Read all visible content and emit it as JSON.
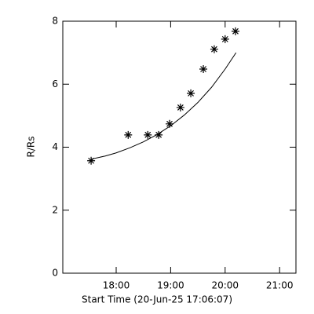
{
  "chart_data": {
    "type": "scatter",
    "xlabel": "Start Time (20-Jun-25 17:06:07)",
    "ylabel": "R/Rs",
    "xlim": [
      17.02,
      21.3
    ],
    "ylim": [
      0,
      8
    ],
    "xticks": [
      {
        "value": 18,
        "label": "18:00"
      },
      {
        "value": 19,
        "label": "19:00"
      },
      {
        "value": 20,
        "label": "20:00"
      },
      {
        "value": 21,
        "label": "21:00"
      }
    ],
    "yticks": [
      0,
      2,
      4,
      6,
      8
    ],
    "series": [
      {
        "kind": "points",
        "color": "#000000",
        "x": [
          17.54,
          18.22,
          18.58,
          18.78,
          18.98,
          19.18,
          19.37,
          19.6,
          19.8,
          20.0,
          20.19
        ],
        "values": [
          3.57,
          4.39,
          4.39,
          4.39,
          4.74,
          5.26,
          5.71,
          6.48,
          7.11,
          7.43,
          7.68
        ]
      },
      {
        "kind": "fit",
        "color": "#000000",
        "x": [
          17.54,
          17.8,
          18.0,
          18.25,
          18.5,
          18.75,
          19.0,
          19.25,
          19.5,
          19.75,
          20.0,
          20.2
        ],
        "values": [
          3.62,
          3.72,
          3.82,
          3.98,
          4.17,
          4.4,
          4.68,
          5.02,
          5.42,
          5.9,
          6.48,
          7.0
        ]
      }
    ]
  }
}
